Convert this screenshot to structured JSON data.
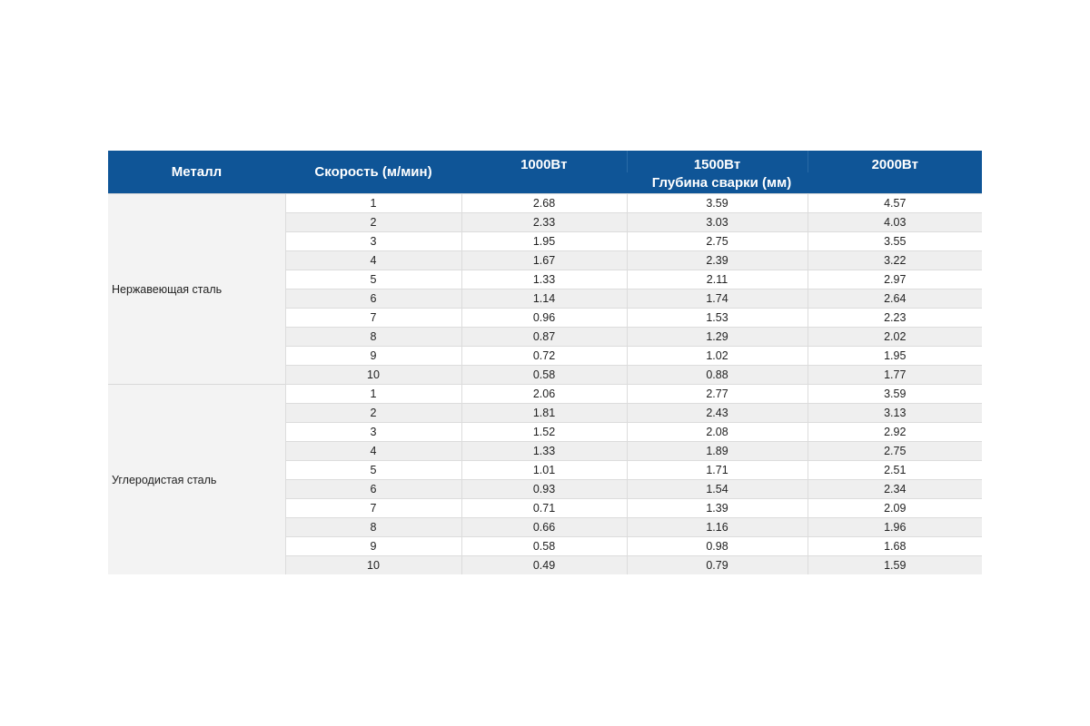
{
  "table": {
    "headers": {
      "metal": "Металл",
      "speed": "Скорость (м/мин)",
      "power_1": "1000Вт",
      "power_2": "1500Вт",
      "power_3": "2000Вт",
      "depth": "Глубина сварки (мм)"
    },
    "groups": [
      {
        "metal": "Нержавеющая сталь",
        "rows": [
          [
            "1",
            "2.68",
            "3.59",
            "4.57"
          ],
          [
            "2",
            "2.33",
            "3.03",
            "4.03"
          ],
          [
            "3",
            "1.95",
            "2.75",
            "3.55"
          ],
          [
            "4",
            "1.67",
            "2.39",
            "3.22"
          ],
          [
            "5",
            "1.33",
            "2.11",
            "2.97"
          ],
          [
            "6",
            "1.14",
            "1.74",
            "2.64"
          ],
          [
            "7",
            "0.96",
            "1.53",
            "2.23"
          ],
          [
            "8",
            "0.87",
            "1.29",
            "2.02"
          ],
          [
            "9",
            "0.72",
            "1.02",
            "1.95"
          ],
          [
            "10",
            "0.58",
            "0.88",
            "1.77"
          ]
        ]
      },
      {
        "metal": "Углеродистая сталь",
        "rows": [
          [
            "1",
            "2.06",
            "2.77",
            "3.59"
          ],
          [
            "2",
            "1.81",
            "2.43",
            "3.13"
          ],
          [
            "3",
            "1.52",
            "2.08",
            "2.92"
          ],
          [
            "4",
            "1.33",
            "1.89",
            "2.75"
          ],
          [
            "5",
            "1.01",
            "1.71",
            "2.51"
          ],
          [
            "6",
            "0.93",
            "1.54",
            "2.34"
          ],
          [
            "7",
            "0.71",
            "1.39",
            "2.09"
          ],
          [
            "8",
            "0.66",
            "1.16",
            "1.96"
          ],
          [
            "9",
            "0.58",
            "0.98",
            "1.68"
          ],
          [
            "10",
            "0.49",
            "0.79",
            "1.59"
          ]
        ]
      }
    ]
  },
  "colors": {
    "header_bg": "#0f5597",
    "header_text": "#ffffff",
    "row_alt": "#efefef",
    "metal_cell": "#f3f3f3"
  }
}
